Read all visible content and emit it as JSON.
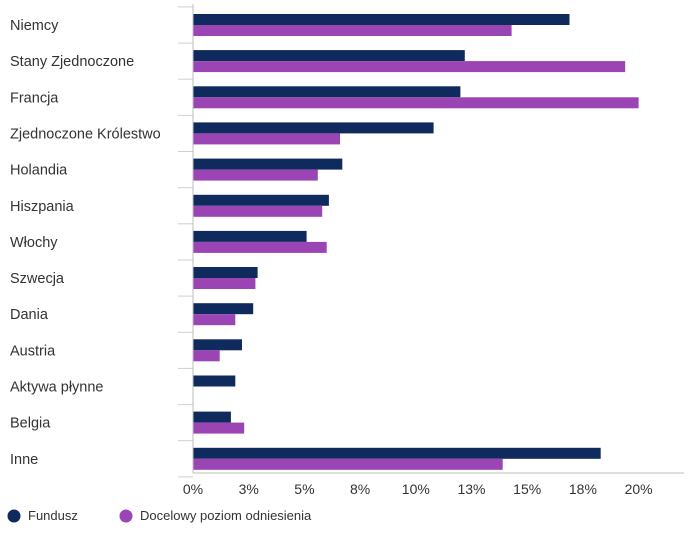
{
  "chart_data": {
    "type": "bar",
    "orientation": "horizontal",
    "categories": [
      "Niemcy",
      "Stany Zjednoczone",
      "Francja",
      "Zjednoczone Królestwo",
      "Holandia",
      "Hiszpania",
      "Włochy",
      "Szwecja",
      "Dania",
      "Austria",
      "Aktywa płynne",
      "Belgia",
      "Inne"
    ],
    "series": [
      {
        "name": "Fundusz",
        "color": "#0f2a5c",
        "values": [
          16.9,
          12.2,
          12.0,
          10.8,
          6.7,
          6.1,
          5.1,
          2.9,
          2.7,
          2.2,
          1.9,
          1.7,
          18.3
        ]
      },
      {
        "name": "Docelowy poziom odniesienia",
        "color": "#9b45b4",
        "values": [
          14.3,
          19.4,
          20.0,
          6.6,
          5.6,
          5.8,
          6.0,
          2.8,
          1.9,
          1.2,
          0.0,
          2.3,
          13.9
        ]
      }
    ],
    "xticks": [
      "0%",
      "3%",
      "5%",
      "8%",
      "10%",
      "13%",
      "15%",
      "18%",
      "20%"
    ],
    "xtick_values": [
      0,
      2.5,
      5,
      7.5,
      10,
      12.5,
      15,
      17.5,
      20
    ],
    "xlim": [
      0,
      22.2
    ],
    "title": "",
    "xlabel": "",
    "ylabel": "",
    "grid": false,
    "legend_position": "bottom-left"
  }
}
